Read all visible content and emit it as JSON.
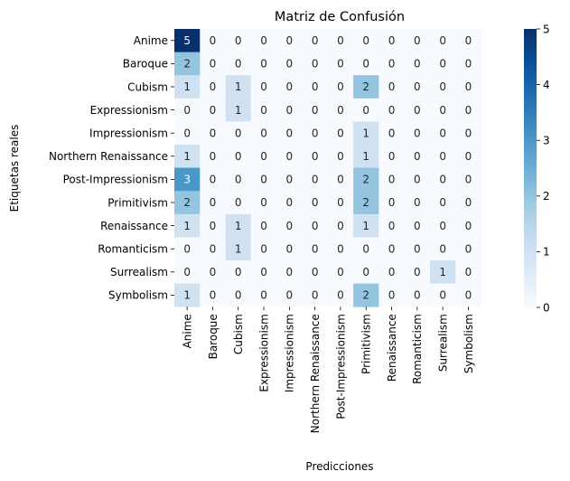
{
  "chart_data": {
    "type": "heatmap",
    "title": "Matriz de Confusión",
    "xlabel": "Predicciones",
    "ylabel": "Etiquetas reales",
    "x_categories": [
      "Anime",
      "Baroque",
      "Cubism",
      "Expressionism",
      "Impressionism",
      "Northern Renaissance",
      "Post-Impressionism",
      "Primitivism",
      "Renaissance",
      "Romanticism",
      "Surrealism",
      "Symbolism"
    ],
    "y_categories": [
      "Anime",
      "Baroque",
      "Cubism",
      "Expressionism",
      "Impressionism",
      "Northern Renaissance",
      "Post-Impressionism",
      "Primitivism",
      "Renaissance",
      "Romanticism",
      "Surrealism",
      "Symbolism"
    ],
    "values": [
      [
        5,
        0,
        0,
        0,
        0,
        0,
        0,
        0,
        0,
        0,
        0,
        0
      ],
      [
        2,
        0,
        0,
        0,
        0,
        0,
        0,
        0,
        0,
        0,
        0,
        0
      ],
      [
        1,
        0,
        1,
        0,
        0,
        0,
        0,
        2,
        0,
        0,
        0,
        0
      ],
      [
        0,
        0,
        1,
        0,
        0,
        0,
        0,
        0,
        0,
        0,
        0,
        0
      ],
      [
        0,
        0,
        0,
        0,
        0,
        0,
        0,
        1,
        0,
        0,
        0,
        0
      ],
      [
        1,
        0,
        0,
        0,
        0,
        0,
        0,
        1,
        0,
        0,
        0,
        0
      ],
      [
        3,
        0,
        0,
        0,
        0,
        0,
        0,
        2,
        0,
        0,
        0,
        0
      ],
      [
        2,
        0,
        0,
        0,
        0,
        0,
        0,
        2,
        0,
        0,
        0,
        0
      ],
      [
        1,
        0,
        1,
        0,
        0,
        0,
        0,
        1,
        0,
        0,
        0,
        0
      ],
      [
        0,
        0,
        1,
        0,
        0,
        0,
        0,
        0,
        0,
        0,
        0,
        0
      ],
      [
        0,
        0,
        0,
        0,
        0,
        0,
        0,
        0,
        0,
        0,
        1,
        0
      ],
      [
        1,
        0,
        0,
        0,
        0,
        0,
        0,
        2,
        0,
        0,
        0,
        0
      ]
    ],
    "colorbar": {
      "min": 0,
      "max": 5,
      "ticks": [
        0,
        1,
        2,
        3,
        4,
        5
      ]
    },
    "colormap": "Blues"
  }
}
